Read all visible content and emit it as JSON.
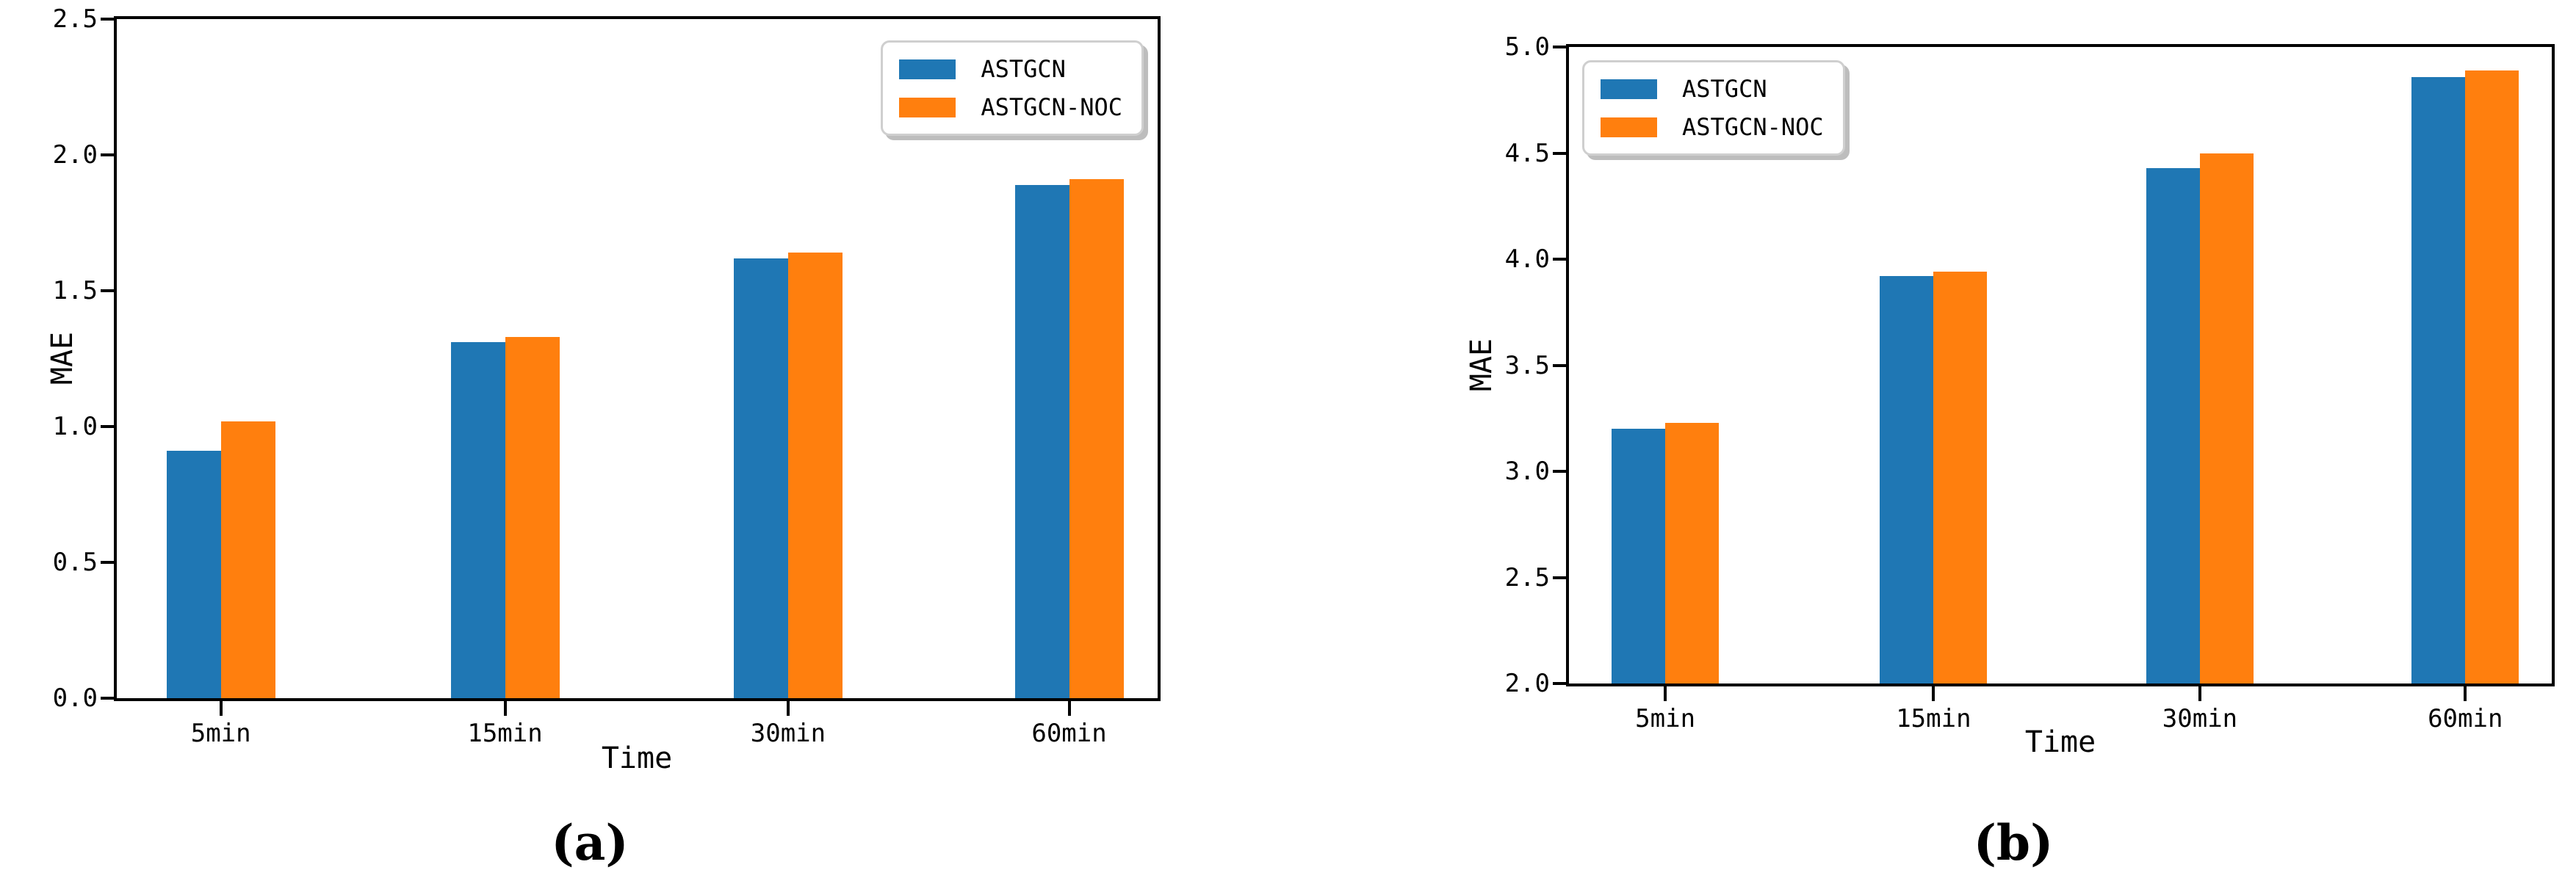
{
  "figure": {
    "background": "#ffffff",
    "series_colors": {
      "astgcn": "#1f77b4",
      "astgcn_noc": "#ff7f0e"
    },
    "axis_color": "#000000",
    "legend_border_color": "#cfcfcf"
  },
  "chart_data": [
    {
      "id": "a",
      "type": "bar",
      "title": "",
      "caption": "(a)",
      "xlabel": "Time",
      "ylabel": "MAE",
      "categories": [
        "5min",
        "15min",
        "30min",
        "60min"
      ],
      "series": [
        {
          "name": "ASTGCN",
          "color": "#1f77b4",
          "values": [
            0.91,
            1.31,
            1.62,
            1.89
          ]
        },
        {
          "name": "ASTGCN-NOC",
          "color": "#ff7f0e",
          "values": [
            1.02,
            1.33,
            1.64,
            1.91
          ]
        }
      ],
      "ylim": [
        0.0,
        2.5
      ],
      "yticks": [
        "0.0",
        "0.5",
        "1.0",
        "1.5",
        "2.0",
        "2.5"
      ],
      "grid": "off",
      "legend_position": "top-right"
    },
    {
      "id": "b",
      "type": "bar",
      "title": "",
      "caption": "(b)",
      "xlabel": "Time",
      "ylabel": "MAE",
      "categories": [
        "5min",
        "15min",
        "30min",
        "60min"
      ],
      "series": [
        {
          "name": "ASTGCN",
          "color": "#1f77b4",
          "values": [
            3.2,
            3.92,
            4.43,
            4.86
          ]
        },
        {
          "name": "ASTGCN-NOC",
          "color": "#ff7f0e",
          "values": [
            3.23,
            3.94,
            4.5,
            4.89
          ]
        }
      ],
      "ylim": [
        2.0,
        5.0
      ],
      "yticks": [
        "2.0",
        "2.5",
        "3.0",
        "3.5",
        "4.0",
        "4.5",
        "5.0"
      ],
      "grid": "off",
      "legend_position": "top-left"
    }
  ]
}
